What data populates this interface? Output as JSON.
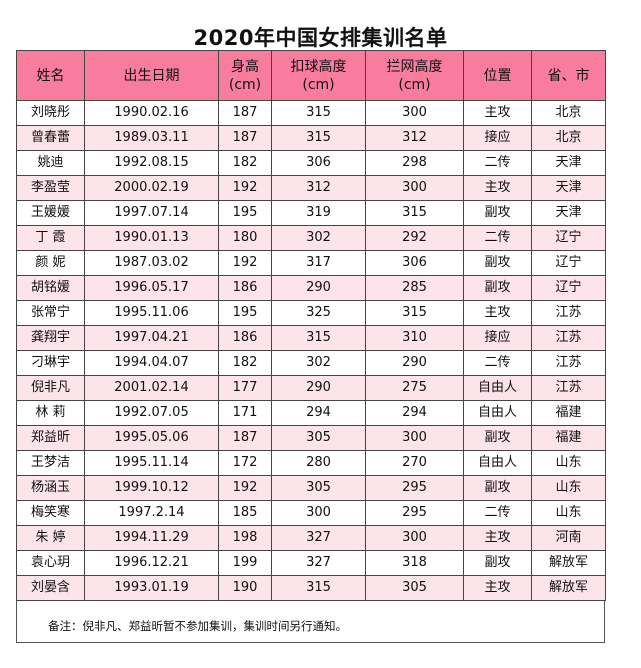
{
  "title": "2020年中国女排集训名单",
  "headers": {
    "name": "姓名",
    "birth": "出生日期",
    "height_l1": "身高",
    "height_l2": "(cm)",
    "spike_l1": "扣球高度",
    "spike_l2": "(cm)",
    "block_l1": "拦网高度",
    "block_l2": "(cm)",
    "position": "位置",
    "province": "省、市"
  },
  "rows": [
    {
      "name": "刘晓彤",
      "birth": "1990.02.16",
      "height": "187",
      "spike": "315",
      "block": "300",
      "position": "主攻",
      "province": "北京"
    },
    {
      "name": "曾春蕾",
      "birth": "1989.03.11",
      "height": "187",
      "spike": "315",
      "block": "312",
      "position": "接应",
      "province": "北京"
    },
    {
      "name": "姚迪",
      "birth": "1992.08.15",
      "height": "182",
      "spike": "306",
      "block": "298",
      "position": "二传",
      "province": "天津"
    },
    {
      "name": "李盈莹",
      "birth": "2000.02.19",
      "height": "192",
      "spike": "312",
      "block": "300",
      "position": "主攻",
      "province": "天津"
    },
    {
      "name": "王媛媛",
      "birth": "1997.07.14",
      "height": "195",
      "spike": "319",
      "block": "315",
      "position": "副攻",
      "province": "天津"
    },
    {
      "name": "丁 霞",
      "birth": "1990.01.13",
      "height": "180",
      "spike": "302",
      "block": "292",
      "position": "二传",
      "province": "辽宁"
    },
    {
      "name": "颜 妮",
      "birth": "1987.03.02",
      "height": "192",
      "spike": "317",
      "block": "306",
      "position": "副攻",
      "province": "辽宁"
    },
    {
      "name": "胡铭媛",
      "birth": "1996.05.17",
      "height": "186",
      "spike": "290",
      "block": "285",
      "position": "副攻",
      "province": "辽宁"
    },
    {
      "name": "张常宁",
      "birth": "1995.11.06",
      "height": "195",
      "spike": "325",
      "block": "315",
      "position": "主攻",
      "province": "江苏"
    },
    {
      "name": "龚翔宇",
      "birth": "1997.04.21",
      "height": "186",
      "spike": "315",
      "block": "310",
      "position": "接应",
      "province": "江苏"
    },
    {
      "name": "刁琳宇",
      "birth": "1994.04.07",
      "height": "182",
      "spike": "302",
      "block": "290",
      "position": "二传",
      "province": "江苏"
    },
    {
      "name": "倪非凡",
      "birth": "2001.02.14",
      "height": "177",
      "spike": "290",
      "block": "275",
      "position": "自由人",
      "province": "江苏"
    },
    {
      "name": "林 莉",
      "birth": "1992.07.05",
      "height": "171",
      "spike": "294",
      "block": "294",
      "position": "自由人",
      "province": "福建"
    },
    {
      "name": "郑益昕",
      "birth": "1995.05.06",
      "height": "187",
      "spike": "305",
      "block": "300",
      "position": "副攻",
      "province": "福建"
    },
    {
      "name": "王梦洁",
      "birth": "1995.11.14",
      "height": "172",
      "spike": "280",
      "block": "270",
      "position": "自由人",
      "province": "山东"
    },
    {
      "name": "杨涵玉",
      "birth": "1999.10.12",
      "height": "192",
      "spike": "305",
      "block": "295",
      "position": "副攻",
      "province": "山东"
    },
    {
      "name": "梅笑寒",
      "birth": "1997.2.14",
      "height": "185",
      "spike": "300",
      "block": "295",
      "position": "二传",
      "province": "山东"
    },
    {
      "name": "朱 婷",
      "birth": "1994.11.29",
      "height": "198",
      "spike": "327",
      "block": "300",
      "position": "主攻",
      "province": "河南"
    },
    {
      "name": "袁心玥",
      "birth": "1996.12.21",
      "height": "199",
      "spike": "327",
      "block": "318",
      "position": "副攻",
      "province": "解放军"
    },
    {
      "name": "刘晏含",
      "birth": "1993.01.19",
      "height": "190",
      "spike": "315",
      "block": "305",
      "position": "主攻",
      "province": "解放军"
    }
  ],
  "note": "备注：倪非凡、郑益昕暂不参加集训，集训时间另行通知。",
  "colors": {
    "header_bg": "#f77c9e",
    "stripe_bg": "#fde3ea"
  }
}
